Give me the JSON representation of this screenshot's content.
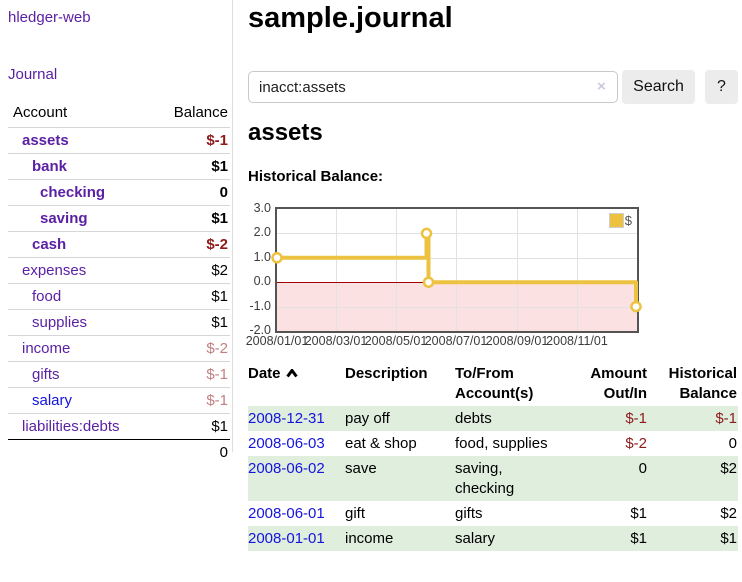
{
  "app": {
    "brand": "hledger-web",
    "nav": {
      "journal": "Journal"
    }
  },
  "sidebar": {
    "headers": {
      "account": "Account",
      "balance": "Balance"
    },
    "rows": [
      {
        "account": "assets",
        "balance": "$-1"
      },
      {
        "account": "bank",
        "balance": "$1"
      },
      {
        "account": "checking",
        "balance": "0"
      },
      {
        "account": "saving",
        "balance": "$1"
      },
      {
        "account": "cash",
        "balance": "$-2"
      },
      {
        "account": "expenses",
        "balance": "$2"
      },
      {
        "account": "food",
        "balance": "$1"
      },
      {
        "account": "supplies",
        "balance": "$1"
      },
      {
        "account": "income",
        "balance": "$-2"
      },
      {
        "account": "gifts",
        "balance": "$-1"
      },
      {
        "account": "salary",
        "balance": "$-1"
      },
      {
        "account": "liabilities:debts",
        "balance": "$1"
      }
    ],
    "total": "0"
  },
  "main": {
    "title": "sample.journal",
    "search": {
      "value": "inacct:assets",
      "clear_icon": "×",
      "search_button": "Search",
      "help_button": "?"
    },
    "account_heading": "assets",
    "section_label": "Historical Balance:"
  },
  "chart_data": {
    "type": "line",
    "line_style": "step",
    "title": "Historical Balance:",
    "series": [
      {
        "name": "$",
        "color": "#edc240",
        "points": [
          [
            "2008-01-01",
            1
          ],
          [
            "2008-06-01",
            2
          ],
          [
            "2008-06-03",
            0
          ],
          [
            "2008-12-31",
            -1
          ]
        ]
      }
    ],
    "xlim": [
      "2008-01-01",
      "2009-01-01"
    ],
    "ylim": [
      -2,
      3
    ],
    "yticks": [
      {
        "v": 3,
        "label": "3.0"
      },
      {
        "v": 2,
        "label": "2.0"
      },
      {
        "v": 1,
        "label": "1.0"
      },
      {
        "v": 0,
        "label": "0.0"
      },
      {
        "v": -1,
        "label": "-1.0"
      },
      {
        "v": -2,
        "label": "-2.0"
      }
    ],
    "xticks": [
      {
        "d": "2008-01-01",
        "label": "2008/01/01"
      },
      {
        "d": "2008-03-01",
        "label": "2008/03/01"
      },
      {
        "d": "2008-05-01",
        "label": "2008/05/01"
      },
      {
        "d": "2008-07-01",
        "label": "2008/07/01"
      },
      {
        "d": "2008-09-01",
        "label": "2008/09/01"
      },
      {
        "d": "2008-11-01",
        "label": "2008/11/01"
      }
    ],
    "grid": true,
    "legend_position": "top-right",
    "negative_region": true,
    "zero_line_color": "#a00000",
    "negative_region_color": "#fbe1e1"
  },
  "register": {
    "headers": {
      "date": "Date",
      "description": "Description",
      "tofrom": "To/From Account(s)",
      "amount": "Amount Out/In",
      "balance": "Historical Balance"
    },
    "rows": [
      {
        "date": "2008-12-31",
        "description": "pay off",
        "accounts": "debts",
        "amount": "$-1",
        "balance": "$-1"
      },
      {
        "date": "2008-06-03",
        "description": "eat & shop",
        "accounts": "food, supplies",
        "amount": "$-2",
        "balance": "0"
      },
      {
        "date": "2008-06-02",
        "description": "save",
        "accounts": "saving, checking",
        "amount": "0",
        "balance": "$2"
      },
      {
        "date": "2008-06-01",
        "description": "gift",
        "accounts": "gifts",
        "amount": "$1",
        "balance": "$2"
      },
      {
        "date": "2008-01-01",
        "description": "income",
        "accounts": "salary",
        "amount": "$1",
        "balance": "$1"
      }
    ]
  },
  "colors": {
    "link_purple": "#5b21a5",
    "link_blue": "#1414dd",
    "negative_strong": "#8e1b1b",
    "negative_soft": "#c08080",
    "series_gold": "#edc240",
    "row_green": "#dfeedd",
    "plot_border": "#545454"
  }
}
